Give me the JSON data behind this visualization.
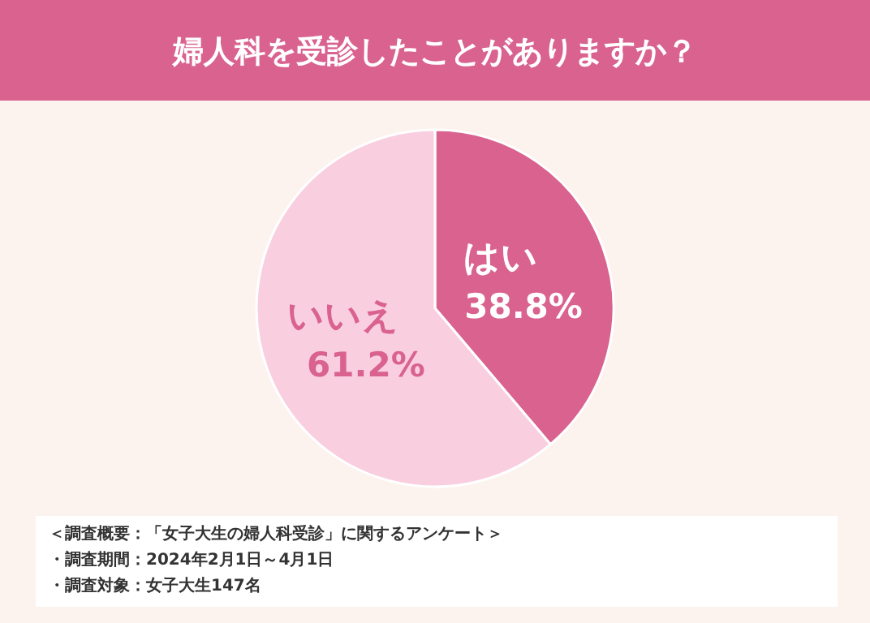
{
  "chart_data": {
    "type": "pie",
    "title": "婦人科を受診したことがありますか？",
    "categories": [
      "はい",
      "いいえ"
    ],
    "values": [
      38.8,
      61.2
    ],
    "value_labels": [
      "38.8%",
      "61.2%"
    ],
    "colors": [
      "#d9628f",
      "#f9cfe0"
    ],
    "annotations": [
      "＜調査概要：「女子大生の婦人科受診」に関するアンケート＞",
      "・調査期間：2024年2月1日～4月1日",
      "・調査対象：女子大生147名"
    ]
  }
}
